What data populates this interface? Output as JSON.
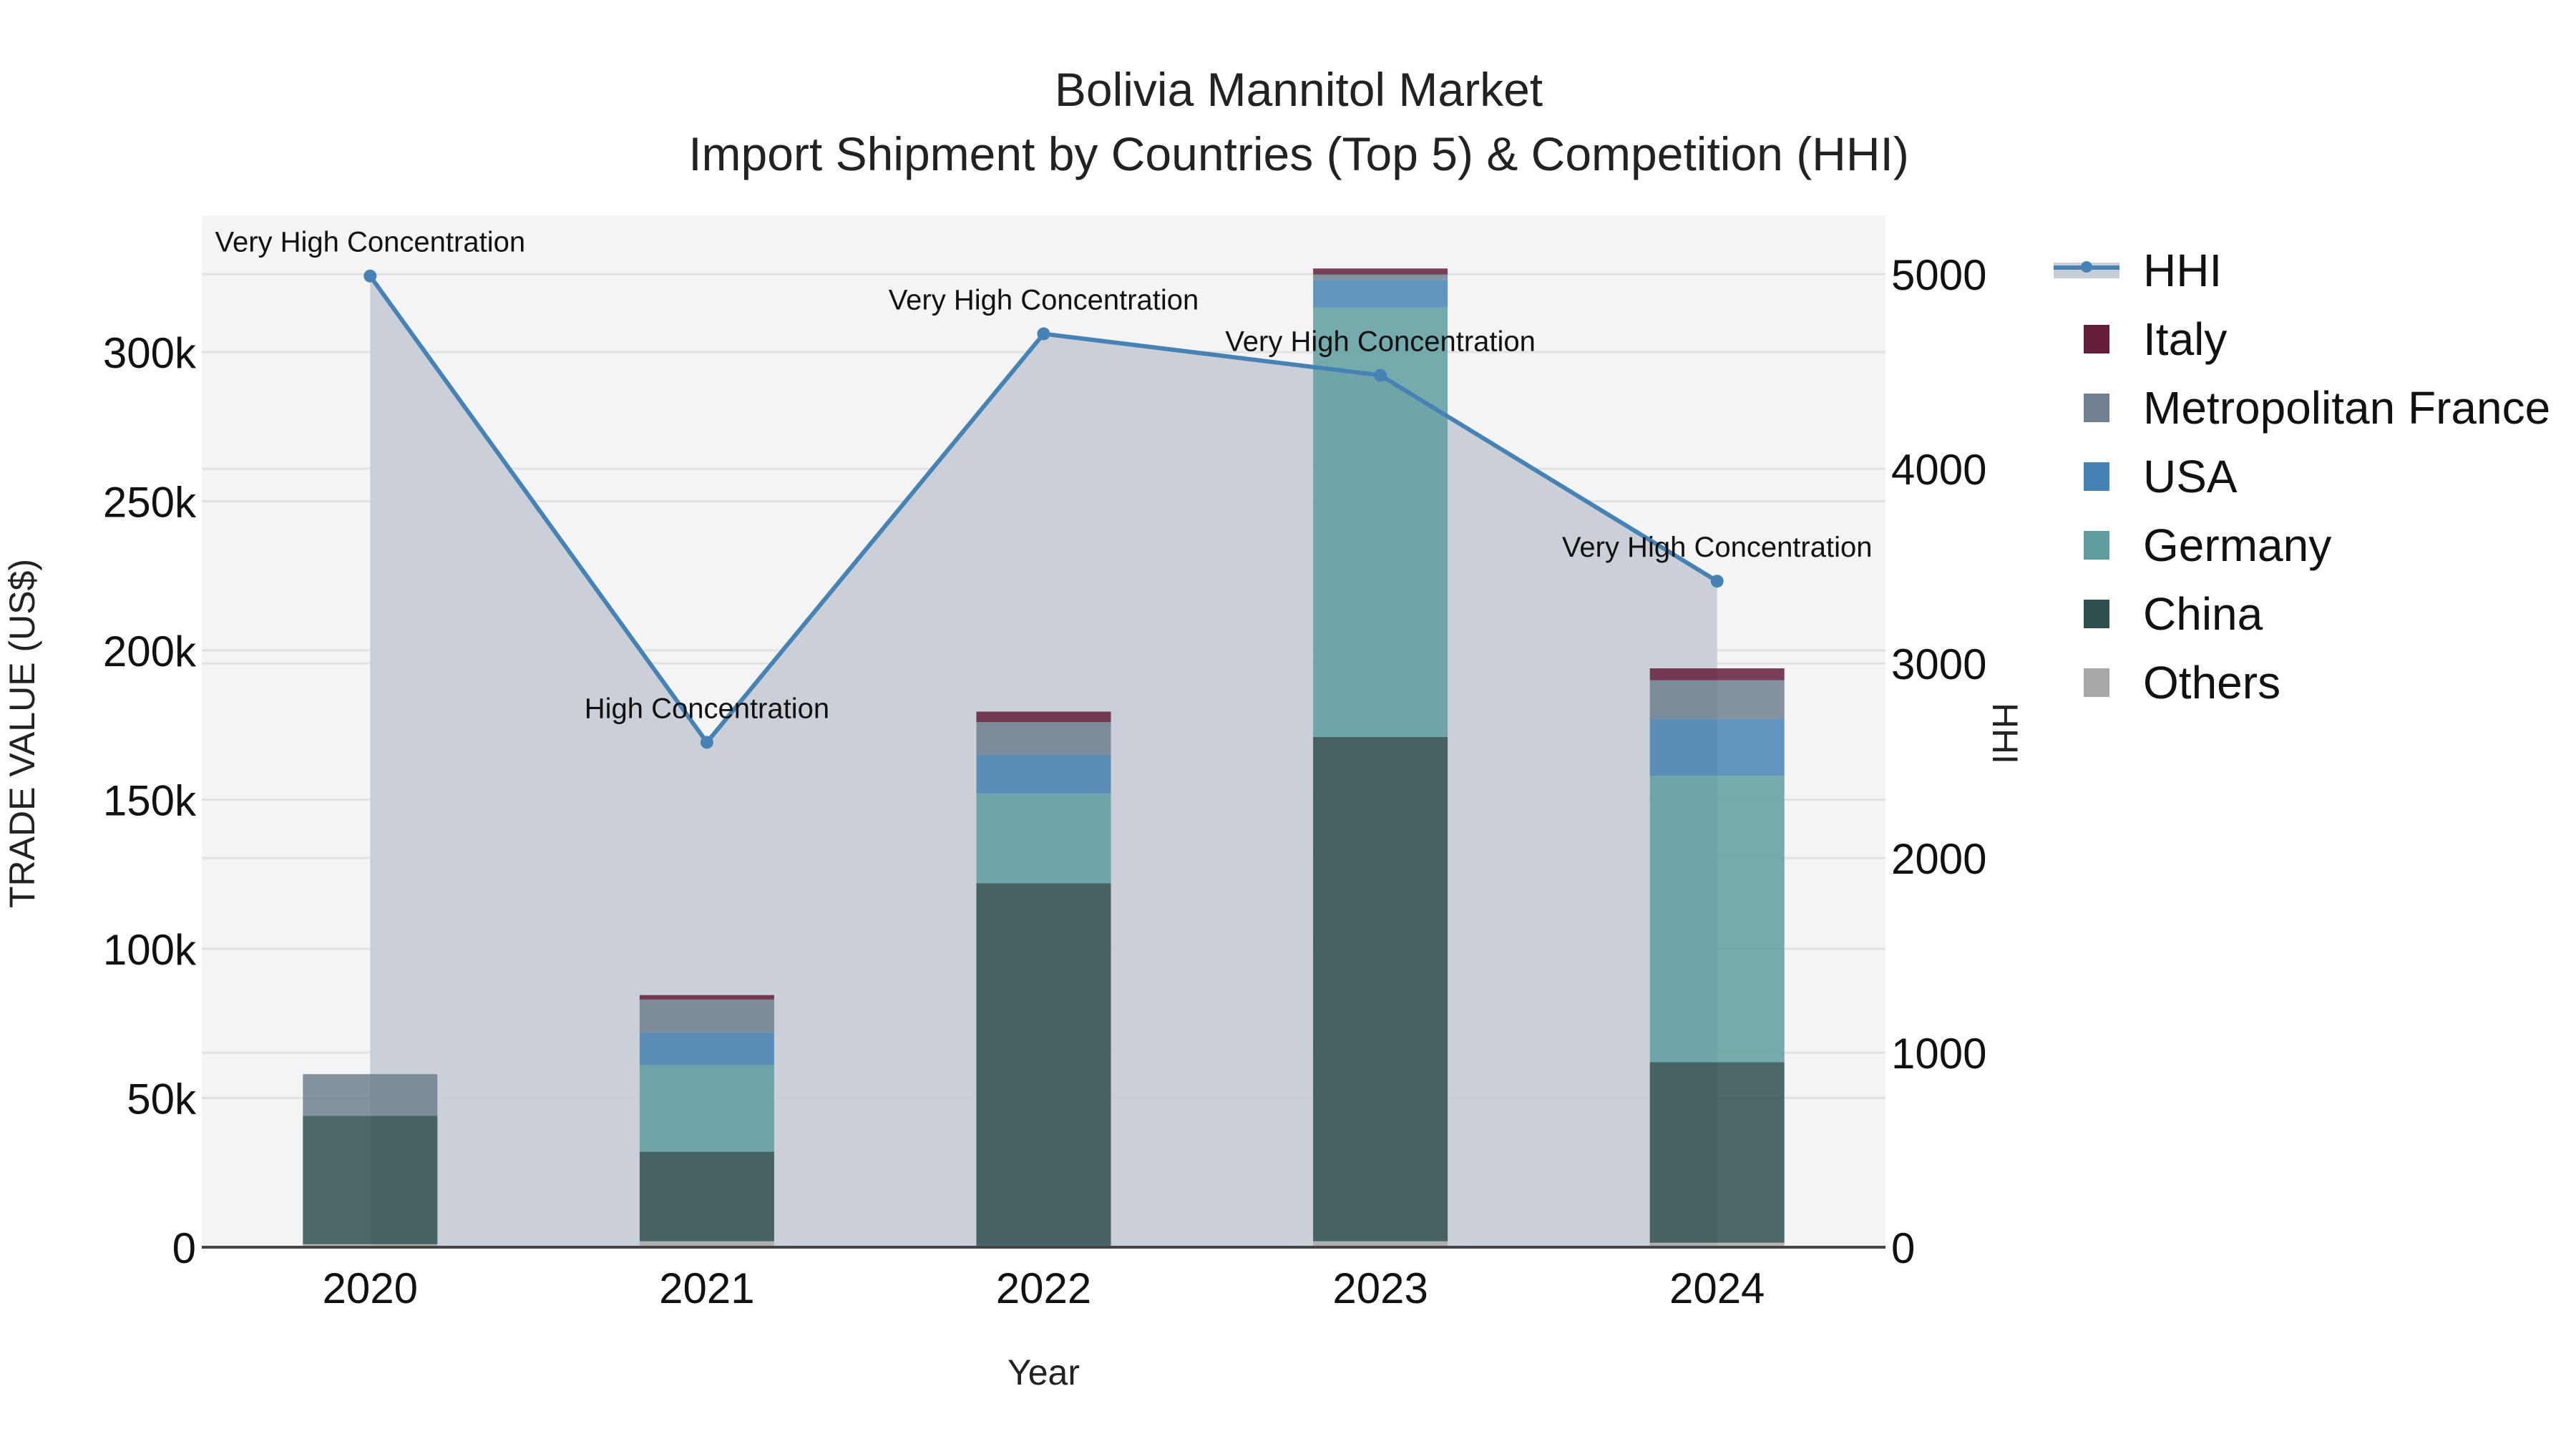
{
  "chart_data": {
    "type": "bar",
    "title": "Bolivia Mannitol Market",
    "subtitle": "Import Shipment by Countries (Top 5) & Competition (HHI)",
    "xlabel": "Year",
    "ylabel": "TRADE VALUE (US$)",
    "y2label": "HHI",
    "categories": [
      "2020",
      "2021",
      "2022",
      "2023",
      "2024"
    ],
    "ylim": [
      0,
      330000
    ],
    "y2lim": [
      0,
      5300
    ],
    "yticks": [
      "0",
      "50k",
      "100k",
      "150k",
      "200k",
      "250k",
      "300k"
    ],
    "y2ticks": [
      "0",
      "1000",
      "2000",
      "3000",
      "4000",
      "5000"
    ],
    "stacked": true,
    "series": [
      {
        "name": "Others",
        "color": "#a9a9a9",
        "values": [
          1000,
          2000,
          500,
          2000,
          1500
        ]
      },
      {
        "name": "China",
        "color": "#2f4f4f",
        "values": [
          43000,
          30000,
          121500,
          169000,
          60500
        ]
      },
      {
        "name": "Germany",
        "color": "#5f9ea0",
        "values": [
          0,
          29000,
          30000,
          144000,
          96000
        ]
      },
      {
        "name": "USA",
        "color": "#4682b4",
        "values": [
          0,
          11000,
          13000,
          9000,
          19000
        ]
      },
      {
        "name": "Metropolitan France",
        "color": "#708090",
        "values": [
          14000,
          11000,
          11000,
          2000,
          13000
        ]
      },
      {
        "name": "Italy",
        "color": "#641e3c",
        "values": [
          0,
          1500,
          3500,
          2000,
          4000
        ]
      }
    ],
    "line_series": {
      "name": "HHI",
      "axis": "y2",
      "color": "#4682b4",
      "fill": "#c8cdd6",
      "values": [
        4990,
        2594,
        4693,
        4480,
        3422
      ],
      "annotations": [
        "Very High Concentration",
        "High Concentration",
        "Very High Concentration",
        "Very High Concentration",
        "Very High Concentration"
      ]
    },
    "legend_position": "right",
    "grid": true
  },
  "legend": {
    "items": [
      "HHI",
      "Italy",
      "Metropolitan France",
      "USA",
      "Germany",
      "China",
      "Others"
    ]
  }
}
